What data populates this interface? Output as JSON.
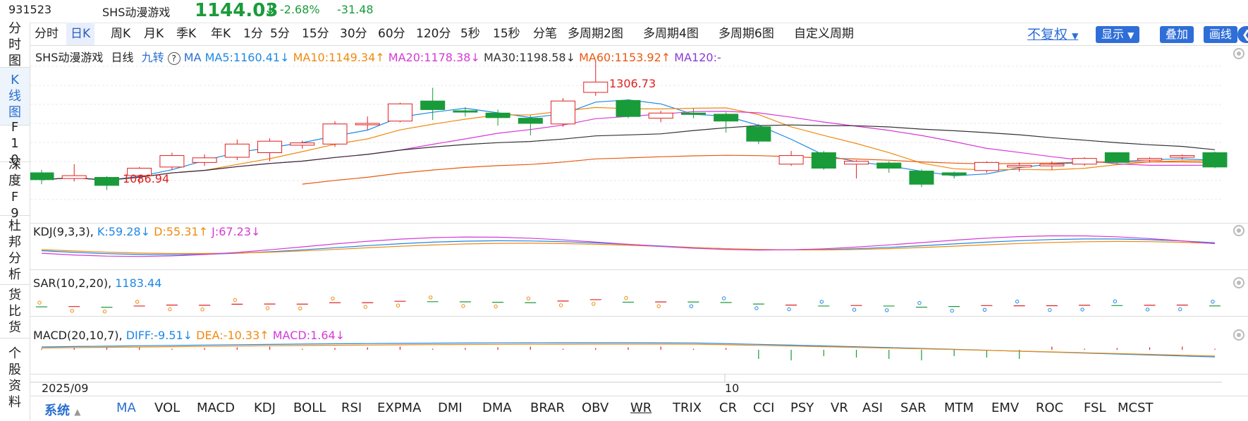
{
  "header": {
    "code": "931523",
    "name": "SHS动漫游戏",
    "price": "1144.03",
    "price_arrow": "↓",
    "change_pct": "-2.68%",
    "change_abs": "-31.48"
  },
  "sidebar": {
    "items": [
      {
        "label": "分时图"
      },
      {
        "label": "K线图"
      },
      {
        "label": "F10"
      },
      {
        "label": "深度F9"
      },
      {
        "label": "杜邦分析"
      },
      {
        "label": "货比货"
      },
      {
        "label": "个股资料"
      }
    ]
  },
  "toolbar": {
    "periods": [
      "分时",
      "日K",
      "周K",
      "月K",
      "季K",
      "年K",
      "1分",
      "5分",
      "15分",
      "30分",
      "60分",
      "120分",
      "5秒",
      "15秒",
      "分笔",
      "多周期2图",
      "多周期4图",
      "多周期6图",
      "自定义周期"
    ],
    "adjust_label": "不复权",
    "display_label": "显示",
    "overlay_label": "叠加",
    "draw_label": "画线"
  },
  "main_pane": {
    "name": "SHS动漫游戏",
    "period": "日线",
    "nine_turn": "九转",
    "ma_label": "MA",
    "ma5": "MA5:1160.41↓",
    "ma10": "MA10:1149.34↑",
    "ma20": "MA20:1178.38↓",
    "ma30": "MA30:1198.58↓",
    "ma60": "MA60:1153.92↑",
    "ma120": "MA120:-",
    "high_label": "1306.73",
    "low_label": "1086.94"
  },
  "kdj_pane": {
    "name": "KDJ(9,3,3)",
    "k": "K:59.28↓",
    "d": "D:55.31↑",
    "j": "J:67.23↓"
  },
  "sar_pane": {
    "name": "SAR(10,2,20)",
    "value": "1183.44"
  },
  "macd_pane": {
    "name": "MACD(20,10,7)",
    "diff": "DIFF:-9.51↓",
    "dea": "DEA:-10.33↑",
    "macd": "MACD:1.64↓"
  },
  "x_axis": {
    "label_start": "2025/09",
    "label_mid": "10"
  },
  "bottom_tabs": {
    "system": "系统",
    "items": [
      "MA",
      "VOL",
      "MACD",
      "KDJ",
      "BOLL",
      "RSI",
      "EXPMA",
      "DMI",
      "DMA",
      "BRAR",
      "OBV",
      "WR",
      "TRIX",
      "CR",
      "CCI",
      "PSY",
      "VR",
      "ASI",
      "SAR",
      "MTM",
      "EMV",
      "ROC",
      "FSL",
      "MCST"
    ]
  },
  "chart_data": {
    "type": "candlestick",
    "candles": [
      {
        "o": 1110,
        "c": 1098,
        "h": 1115,
        "l": 1090
      },
      {
        "o": 1100,
        "c": 1105,
        "h": 1125,
        "l": 1095
      },
      {
        "o": 1102,
        "c": 1088,
        "h": 1104,
        "l": 1080
      },
      {
        "o": 1105,
        "c": 1118,
        "h": 1120,
        "l": 1090
      },
      {
        "o": 1120,
        "c": 1140,
        "h": 1145,
        "l": 1115
      },
      {
        "o": 1128,
        "c": 1136,
        "h": 1142,
        "l": 1122
      },
      {
        "o": 1137,
        "c": 1160,
        "h": 1168,
        "l": 1132
      },
      {
        "o": 1145,
        "c": 1165,
        "h": 1170,
        "l": 1130
      },
      {
        "o": 1158,
        "c": 1162,
        "h": 1166,
        "l": 1152
      },
      {
        "o": 1160,
        "c": 1195,
        "h": 1200,
        "l": 1155
      },
      {
        "o": 1195,
        "c": 1196,
        "h": 1208,
        "l": 1185
      },
      {
        "o": 1200,
        "c": 1230,
        "h": 1232,
        "l": 1198
      },
      {
        "o": 1235,
        "c": 1220,
        "h": 1258,
        "l": 1202
      },
      {
        "o": 1218,
        "c": 1217,
        "h": 1224,
        "l": 1208
      },
      {
        "o": 1214,
        "c": 1206,
        "h": 1220,
        "l": 1192
      },
      {
        "o": 1205,
        "c": 1196,
        "h": 1210,
        "l": 1175
      },
      {
        "o": 1195,
        "c": 1235,
        "h": 1240,
        "l": 1190
      },
      {
        "o": 1250,
        "c": 1268,
        "h": 1306,
        "l": 1244
      },
      {
        "o": 1236,
        "c": 1208,
        "h": 1238,
        "l": 1205
      },
      {
        "o": 1205,
        "c": 1214,
        "h": 1218,
        "l": 1198
      },
      {
        "o": 1214,
        "c": 1213,
        "h": 1222,
        "l": 1205
      },
      {
        "o": 1212,
        "c": 1200,
        "h": 1215,
        "l": 1180
      },
      {
        "o": 1190,
        "c": 1165,
        "h": 1195,
        "l": 1160
      },
      {
        "o": 1125,
        "c": 1140,
        "h": 1148,
        "l": 1122
      },
      {
        "o": 1145,
        "c": 1118,
        "h": 1148,
        "l": 1115
      },
      {
        "o": 1125,
        "c": 1130,
        "h": 1132,
        "l": 1100
      },
      {
        "o": 1127,
        "c": 1118,
        "h": 1130,
        "l": 1110
      },
      {
        "o": 1113,
        "c": 1090,
        "h": 1116,
        "l": 1085
      },
      {
        "o": 1110,
        "c": 1106,
        "h": 1112,
        "l": 1100
      },
      {
        "o": 1114,
        "c": 1128,
        "h": 1130,
        "l": 1110
      },
      {
        "o": 1120,
        "c": 1123,
        "h": 1128,
        "l": 1112
      },
      {
        "o": 1122,
        "c": 1125,
        "h": 1130,
        "l": 1115
      },
      {
        "o": 1125,
        "c": 1135,
        "h": 1137,
        "l": 1122
      },
      {
        "o": 1145,
        "c": 1128,
        "h": 1146,
        "l": 1126
      },
      {
        "o": 1132,
        "c": 1135,
        "h": 1137,
        "l": 1128
      },
      {
        "o": 1137,
        "c": 1140,
        "h": 1142,
        "l": 1133
      },
      {
        "o": 1145,
        "c": 1120,
        "h": 1147,
        "l": 1118
      }
    ],
    "price_range": [
      1040,
      1320
    ]
  }
}
